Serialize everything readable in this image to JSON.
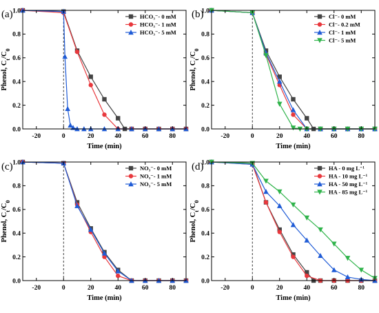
{
  "chart_data": [
    {
      "type": "line",
      "panel_label": "(a)",
      "xlabel": "Time (min)",
      "ylabel": "Phenol, C_t/C_0",
      "xlim": [
        -30,
        90
      ],
      "ylim": [
        0,
        1.0
      ],
      "xticks": [
        -20,
        0,
        20,
        40,
        60,
        80
      ],
      "yticks": [
        0.0,
        0.2,
        0.4,
        0.6,
        0.8,
        1.0
      ],
      "legend_position": "top-right",
      "series": [
        {
          "name": "HCO₃⁻- 0 mM",
          "color": "#444444",
          "marker": "square",
          "x": [
            -30,
            0,
            10,
            20,
            30,
            40,
            45,
            50,
            60,
            70,
            80,
            90
          ],
          "y": [
            1.0,
            0.99,
            0.66,
            0.44,
            0.25,
            0.09,
            0.0,
            0.0,
            0.0,
            0.0,
            0.0,
            0.0
          ]
        },
        {
          "name": "HCO₃⁻- 1 mM",
          "color": "#e8383d",
          "marker": "circle",
          "x": [
            -30,
            0,
            10,
            20,
            30,
            40,
            50,
            60,
            70,
            80,
            90
          ],
          "y": [
            1.0,
            0.98,
            0.65,
            0.37,
            0.12,
            0.0,
            0.0,
            0.0,
            0.0,
            0.0,
            0.0
          ]
        },
        {
          "name": "HCO₃⁻- 5 mM",
          "color": "#1f5bd6",
          "marker": "triangle",
          "x": [
            -30,
            0,
            1,
            3,
            5,
            7,
            10,
            15,
            20,
            30,
            40,
            50,
            60,
            70,
            80,
            90
          ],
          "y": [
            1.0,
            0.99,
            0.61,
            0.17,
            0.03,
            0.01,
            0.0,
            0.0,
            0.0,
            0.0,
            0.0,
            0.0,
            0.0,
            0.0,
            0.0,
            0.0
          ]
        }
      ]
    },
    {
      "type": "line",
      "panel_label": "(b)",
      "xlabel": "Time (min)",
      "ylabel": "Phenol, C_t/C_0",
      "xlim": [
        -30,
        90
      ],
      "ylim": [
        0,
        1.0
      ],
      "xticks": [
        -20,
        0,
        20,
        40,
        60,
        80
      ],
      "yticks": [
        0.0,
        0.2,
        0.4,
        0.6,
        0.8,
        1.0
      ],
      "legend_position": "top-right",
      "series": [
        {
          "name": "Cl⁻- 0 mM",
          "color": "#444444",
          "marker": "square",
          "x": [
            -30,
            0,
            10,
            20,
            30,
            40,
            45,
            50,
            60,
            70,
            80,
            90
          ],
          "y": [
            1.0,
            0.98,
            0.66,
            0.44,
            0.25,
            0.09,
            0.0,
            0.0,
            0.0,
            0.0,
            0.0,
            0.0
          ]
        },
        {
          "name": "Cl⁻- 0.2 mM",
          "color": "#e8383d",
          "marker": "circle",
          "x": [
            -30,
            0,
            10,
            20,
            30,
            40,
            50,
            60,
            70,
            80,
            90
          ],
          "y": [
            1.0,
            0.98,
            0.63,
            0.37,
            0.12,
            0.0,
            0.0,
            0.0,
            0.0,
            0.0,
            0.0
          ]
        },
        {
          "name": "Cl⁻- 1 mM",
          "color": "#1f5bd6",
          "marker": "triangle",
          "x": [
            -30,
            0,
            10,
            20,
            30,
            40,
            50,
            60,
            70,
            80,
            90
          ],
          "y": [
            1.0,
            0.98,
            0.64,
            0.4,
            0.16,
            0.0,
            0.0,
            0.0,
            0.0,
            0.0,
            0.0
          ]
        },
        {
          "name": "Cl⁻- 5 mM",
          "color": "#2fb34a",
          "marker": "triangle-down",
          "x": [
            -30,
            0,
            10,
            20,
            30,
            35,
            40,
            50,
            60,
            70,
            80,
            90
          ],
          "y": [
            1.0,
            0.98,
            0.62,
            0.21,
            0.01,
            0.0,
            0.0,
            0.0,
            0.0,
            0.0,
            0.0,
            0.0
          ]
        }
      ]
    },
    {
      "type": "line",
      "panel_label": "(c)",
      "xlabel": "Time (min)",
      "ylabel": "Phenol, C_t/C_0",
      "xlim": [
        -30,
        90
      ],
      "ylim": [
        0,
        1.0
      ],
      "xticks": [
        -20,
        0,
        20,
        40,
        60,
        80
      ],
      "yticks": [
        0.0,
        0.2,
        0.4,
        0.6,
        0.8,
        1.0
      ],
      "legend_position": "top-right",
      "series": [
        {
          "name": "NO₃⁻- 0 mM",
          "color": "#444444",
          "marker": "square",
          "x": [
            -30,
            0,
            10,
            20,
            30,
            40,
            50,
            60,
            70,
            80,
            90
          ],
          "y": [
            1.0,
            0.99,
            0.66,
            0.44,
            0.24,
            0.09,
            0.0,
            0.0,
            0.0,
            0.0,
            0.0
          ]
        },
        {
          "name": "NO₃⁻- 1 mM",
          "color": "#e8383d",
          "marker": "circle",
          "x": [
            -30,
            0,
            10,
            20,
            30,
            40,
            50,
            60,
            70,
            80,
            90
          ],
          "y": [
            1.0,
            0.99,
            0.64,
            0.41,
            0.2,
            0.04,
            0.0,
            0.0,
            0.0,
            0.0,
            0.0
          ]
        },
        {
          "name": "NO₃⁻- 5 mM",
          "color": "#1f5bd6",
          "marker": "triangle",
          "x": [
            -30,
            0,
            10,
            20,
            30,
            40,
            50,
            60,
            70,
            80,
            90
          ],
          "y": [
            1.0,
            0.99,
            0.63,
            0.43,
            0.23,
            0.08,
            0.0,
            0.0,
            0.0,
            0.0,
            0.0
          ]
        }
      ]
    },
    {
      "type": "line",
      "panel_label": "(d)",
      "xlabel": "Time (min)",
      "ylabel": "Phenol, C_t/C_0",
      "xlim": [
        -30,
        90
      ],
      "ylim": [
        0,
        1.0
      ],
      "xticks": [
        -20,
        0,
        20,
        40,
        60,
        80
      ],
      "yticks": [
        0.0,
        0.2,
        0.4,
        0.6,
        0.8,
        1.0
      ],
      "legend_position": "top-right",
      "series": [
        {
          "name": "HA - 0 mg L⁻¹",
          "color": "#444444",
          "marker": "square",
          "x": [
            -30,
            0,
            10,
            20,
            30,
            40,
            45,
            50,
            60,
            70,
            80,
            90
          ],
          "y": [
            1.0,
            0.99,
            0.66,
            0.43,
            0.22,
            0.07,
            0.0,
            0.0,
            0.0,
            0.0,
            0.0,
            0.0
          ]
        },
        {
          "name": "HA - 10 mg L⁻¹",
          "color": "#e8383d",
          "marker": "circle",
          "x": [
            -30,
            0,
            10,
            20,
            30,
            40,
            50,
            60,
            70,
            80,
            90
          ],
          "y": [
            1.0,
            0.98,
            0.66,
            0.41,
            0.2,
            0.04,
            0.0,
            0.0,
            0.0,
            0.0,
            0.0
          ]
        },
        {
          "name": "HA - 50 mg L⁻¹",
          "color": "#1f5bd6",
          "marker": "triangle",
          "x": [
            -30,
            0,
            10,
            20,
            30,
            40,
            50,
            60,
            70,
            80,
            90
          ],
          "y": [
            1.0,
            0.98,
            0.75,
            0.63,
            0.47,
            0.34,
            0.21,
            0.09,
            0.03,
            0.01,
            0.0
          ]
        },
        {
          "name": "HA - 85 mg L⁻¹",
          "color": "#2fb34a",
          "marker": "triangle-down",
          "x": [
            -30,
            0,
            10,
            20,
            30,
            40,
            50,
            60,
            70,
            80,
            90
          ],
          "y": [
            1.0,
            0.99,
            0.84,
            0.75,
            0.64,
            0.53,
            0.43,
            0.31,
            0.19,
            0.09,
            0.02
          ]
        }
      ]
    }
  ]
}
